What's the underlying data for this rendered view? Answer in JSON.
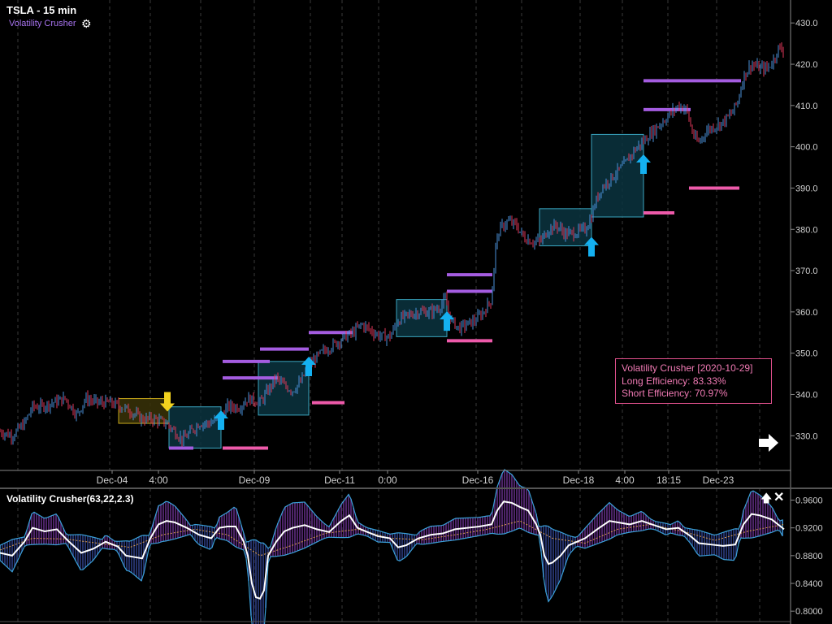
{
  "header": {
    "symbol_title": "TSLA - 15 min",
    "indicator_name": "Volatility Crusher",
    "settings_icon": "gear-icon"
  },
  "info_box": {
    "title": "Volatility Crusher [2020-10-29]",
    "long_efficiency": "Long Efficiency: 83.33%",
    "short_efficiency": "Short Efficiency: 70.97%"
  },
  "subpanel": {
    "title": "Volatility Crusher(63,22,2.3)",
    "maximize_icon": "arrow-up-icon",
    "close_icon": "close-icon"
  },
  "nav": {
    "scroll_right_icon": "arrow-right-icon"
  },
  "colors": {
    "background": "#000000",
    "up_candle": "#4a8fd8",
    "down_candle": "#e0385a",
    "long_level": "#a45ce0",
    "short_level": "#ee5aaa",
    "box_fill": "#0b3440",
    "box_border": "#3aa6c0",
    "long_arrow": "#14b0f0",
    "short_arrow": "#f2d21e",
    "text_purple": "#a874f0"
  },
  "chart_data": [
    {
      "type": "candlestick",
      "title": "TSLA - 15 min",
      "y_ticks": [
        430,
        420,
        410,
        400,
        390,
        380,
        370,
        360,
        350,
        340,
        330
      ],
      "ylim": [
        321,
        433
      ],
      "x_ticks": [
        "Dec-04",
        "4:00",
        "Dec-09",
        "Dec-11",
        "0:00",
        "Dec-16",
        "Dec-18",
        "4:00",
        "18:15",
        "Dec-23"
      ],
      "price_path": [
        [
          0,
          331
        ],
        [
          15,
          330
        ],
        [
          30,
          333
        ],
        [
          40,
          337
        ],
        [
          50,
          337
        ],
        [
          65,
          338
        ],
        [
          80,
          339
        ],
        [
          95,
          335
        ],
        [
          105,
          339
        ],
        [
          120,
          338
        ],
        [
          135,
          338
        ],
        [
          150,
          337
        ],
        [
          160,
          336
        ],
        [
          175,
          334
        ],
        [
          190,
          334
        ],
        [
          205,
          333
        ],
        [
          215,
          331
        ],
        [
          225,
          329
        ],
        [
          235,
          331
        ],
        [
          245,
          333
        ],
        [
          258,
          333
        ],
        [
          270,
          334
        ],
        [
          280,
          337
        ],
        [
          295,
          337
        ],
        [
          305,
          339
        ],
        [
          320,
          338
        ],
        [
          330,
          341
        ],
        [
          340,
          344
        ],
        [
          350,
          342
        ],
        [
          360,
          341
        ],
        [
          370,
          343
        ],
        [
          380,
          347
        ],
        [
          395,
          350
        ],
        [
          410,
          352
        ],
        [
          425,
          354
        ],
        [
          435,
          355
        ],
        [
          445,
          357
        ],
        [
          460,
          355
        ],
        [
          470,
          354
        ],
        [
          480,
          354
        ],
        [
          490,
          358
        ],
        [
          500,
          359
        ],
        [
          515,
          360
        ],
        [
          530,
          360
        ],
        [
          540,
          361
        ],
        [
          548,
          363
        ],
        [
          555,
          358
        ],
        [
          565,
          356
        ],
        [
          575,
          357
        ],
        [
          585,
          358
        ],
        [
          595,
          360
        ],
        [
          605,
          363
        ],
        [
          610,
          376
        ],
        [
          615,
          380
        ],
        [
          625,
          382
        ],
        [
          635,
          381
        ],
        [
          645,
          378
        ],
        [
          655,
          377
        ],
        [
          665,
          377
        ],
        [
          675,
          380
        ],
        [
          685,
          381
        ],
        [
          695,
          379
        ],
        [
          705,
          379
        ],
        [
          720,
          380
        ],
        [
          728,
          383
        ],
        [
          732,
          386
        ],
        [
          740,
          390
        ],
        [
          750,
          392
        ],
        [
          760,
          394
        ],
        [
          770,
          396
        ],
        [
          780,
          399
        ],
        [
          790,
          401
        ],
        [
          800,
          403
        ],
        [
          810,
          405
        ],
        [
          820,
          407
        ],
        [
          835,
          410
        ],
        [
          845,
          409
        ],
        [
          850,
          405
        ],
        [
          855,
          402
        ],
        [
          860,
          401
        ],
        [
          870,
          404
        ],
        [
          880,
          405
        ],
        [
          890,
          406
        ],
        [
          900,
          408
        ],
        [
          908,
          411
        ],
        [
          915,
          417
        ],
        [
          925,
          420
        ],
        [
          935,
          419
        ],
        [
          945,
          419
        ],
        [
          952,
          421
        ],
        [
          958,
          424
        ],
        [
          965,
          423
        ]
      ],
      "long_levels": [
        [
          208,
          238,
          327
        ],
        [
          274,
          332,
          348
        ],
        [
          274,
          342,
          344
        ],
        [
          320,
          380,
          351
        ],
        [
          380,
          434,
          355
        ],
        [
          550,
          606,
          369
        ],
        [
          550,
          606,
          365
        ],
        [
          792,
          912,
          416
        ],
        [
          792,
          850,
          409
        ]
      ],
      "short_levels": [
        [
          274,
          330,
          327
        ],
        [
          384,
          424,
          338
        ],
        [
          550,
          606,
          353
        ],
        [
          792,
          830,
          384
        ],
        [
          848,
          910,
          390
        ]
      ],
      "boxes": [
        [
          146,
          208,
          333,
          339
        ],
        [
          208,
          272,
          327,
          337
        ],
        [
          318,
          380,
          335,
          348
        ],
        [
          488,
          550,
          354,
          363
        ],
        [
          664,
          728,
          376,
          385
        ],
        [
          728,
          792,
          383,
          403
        ]
      ],
      "long_signals": [
        [
          272,
          333
        ],
        [
          380,
          346
        ],
        [
          550,
          357
        ],
        [
          728,
          375
        ],
        [
          792,
          395
        ]
      ],
      "short_signals": [
        [
          206,
          339
        ]
      ]
    },
    {
      "type": "line",
      "title": "Volatility Crusher(63,22,2.3)",
      "y_ticks": [
        0.96,
        0.92,
        0.88,
        0.84,
        0.8
      ],
      "ylim": [
        0.785,
        0.977
      ],
      "series": [
        {
          "key": "main",
          "color": "#ffffff",
          "values": [
            [
              0,
              0.884
            ],
            [
              15,
              0.88
            ],
            [
              30,
              0.9
            ],
            [
              40,
              0.92
            ],
            [
              55,
              0.915
            ],
            [
              70,
              0.918
            ],
            [
              85,
              0.9
            ],
            [
              100,
              0.884
            ],
            [
              115,
              0.89
            ],
            [
              130,
              0.9
            ],
            [
              145,
              0.893
            ],
            [
              155,
              0.88
            ],
            [
              165,
              0.878
            ],
            [
              175,
              0.876
            ],
            [
              185,
              0.905
            ],
            [
              195,
              0.925
            ],
            [
              205,
              0.93
            ],
            [
              215,
              0.928
            ],
            [
              230,
              0.92
            ],
            [
              245,
              0.91
            ],
            [
              260,
              0.905
            ],
            [
              270,
              0.92
            ],
            [
              280,
              0.922
            ],
            [
              290,
              0.922
            ],
            [
              300,
              0.9
            ],
            [
              305,
              0.88
            ],
            [
              310,
              0.84
            ],
            [
              315,
              0.82
            ],
            [
              320,
              0.818
            ],
            [
              325,
              0.83
            ],
            [
              330,
              0.88
            ],
            [
              340,
              0.9
            ],
            [
              350,
              0.915
            ],
            [
              360,
              0.92
            ],
            [
              375,
              0.924
            ],
            [
              390,
              0.918
            ],
            [
              405,
              0.914
            ],
            [
              420,
              0.93
            ],
            [
              430,
              0.938
            ],
            [
              440,
              0.92
            ],
            [
              450,
              0.915
            ],
            [
              465,
              0.908
            ],
            [
              480,
              0.905
            ],
            [
              490,
              0.892
            ],
            [
              500,
              0.895
            ],
            [
              515,
              0.905
            ],
            [
              530,
              0.91
            ],
            [
              545,
              0.912
            ],
            [
              560,
              0.918
            ],
            [
              575,
              0.92
            ],
            [
              590,
              0.922
            ],
            [
              605,
              0.925
            ],
            [
              612,
              0.945
            ],
            [
              620,
              0.958
            ],
            [
              630,
              0.956
            ],
            [
              640,
              0.95
            ],
            [
              650,
              0.945
            ],
            [
              660,
              0.925
            ],
            [
              665,
              0.91
            ],
            [
              670,
              0.88
            ],
            [
              675,
              0.868
            ],
            [
              680,
              0.87
            ],
            [
              690,
              0.88
            ],
            [
              700,
              0.895
            ],
            [
              710,
              0.9
            ],
            [
              720,
              0.905
            ],
            [
              735,
              0.918
            ],
            [
              750,
              0.93
            ],
            [
              760,
              0.928
            ],
            [
              775,
              0.925
            ],
            [
              790,
              0.93
            ],
            [
              805,
              0.924
            ],
            [
              820,
              0.918
            ],
            [
              835,
              0.92
            ],
            [
              850,
              0.908
            ],
            [
              860,
              0.898
            ],
            [
              875,
              0.896
            ],
            [
              890,
              0.894
            ],
            [
              905,
              0.896
            ],
            [
              915,
              0.925
            ],
            [
              925,
              0.94
            ],
            [
              935,
              0.938
            ],
            [
              950,
              0.932
            ],
            [
              965,
              0.918
            ]
          ]
        },
        {
          "key": "signal",
          "color": "#e0a050",
          "values": [
            [
              0,
              0.888
            ],
            [
              40,
              0.905
            ],
            [
              80,
              0.904
            ],
            [
              120,
              0.898
            ],
            [
              160,
              0.892
            ],
            [
              200,
              0.91
            ],
            [
              240,
              0.918
            ],
            [
              280,
              0.91
            ],
            [
              320,
              0.88
            ],
            [
              360,
              0.895
            ],
            [
              400,
              0.912
            ],
            [
              440,
              0.918
            ],
            [
              480,
              0.905
            ],
            [
              520,
              0.903
            ],
            [
              560,
              0.91
            ],
            [
              600,
              0.918
            ],
            [
              640,
              0.93
            ],
            [
              680,
              0.905
            ],
            [
              720,
              0.898
            ],
            [
              760,
              0.918
            ],
            [
              800,
              0.925
            ],
            [
              840,
              0.915
            ],
            [
              880,
              0.902
            ],
            [
              920,
              0.915
            ],
            [
              965,
              0.925
            ]
          ]
        }
      ]
    }
  ]
}
